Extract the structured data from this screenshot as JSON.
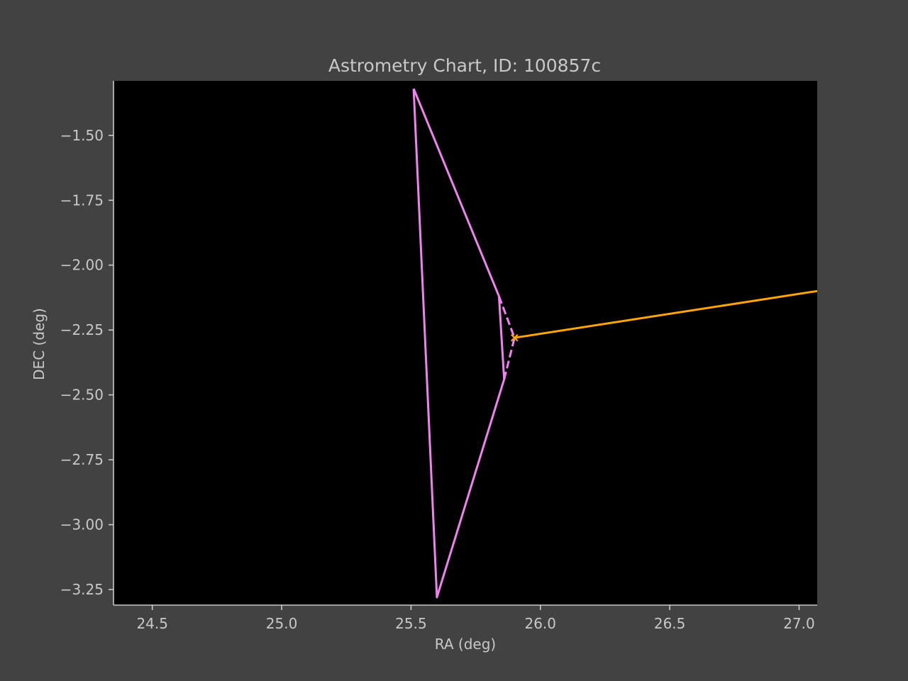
{
  "colors": {
    "figure_bg": "#424242",
    "axes_bg": "#000000",
    "axis_text": "#c8c8c8",
    "spine": "#c8c8c8",
    "outline_series": "#ee82ee",
    "track_series": "#ffa500"
  },
  "chart_data": {
    "type": "line",
    "title": "Astrometry Chart, ID: 100857c",
    "xlabel": "RA (deg)",
    "ylabel": "DEC (deg)",
    "xlim": [
      24.35,
      27.07
    ],
    "ylim": [
      -3.31,
      -1.29
    ],
    "xticks": [
      24.5,
      25.0,
      25.5,
      26.0,
      26.5,
      27.0
    ],
    "xtick_labels": [
      "24.5",
      "25.0",
      "25.5",
      "26.0",
      "26.5",
      "27.0"
    ],
    "yticks": [
      -1.5,
      -1.75,
      -2.0,
      -2.25,
      -2.5,
      -2.75,
      -3.0,
      -3.25
    ],
    "ytick_labels": [
      "−1.50",
      "−1.75",
      "−2.00",
      "−2.25",
      "−2.50",
      "−2.75",
      "−3.00",
      "−3.25"
    ],
    "grid": false,
    "series": [
      {
        "color": "violet",
        "style": "solid",
        "x": [
          25.51,
          25.84,
          25.86,
          25.6,
          25.51
        ],
        "y": [
          -1.32,
          -2.12,
          -2.44,
          -3.28,
          -1.32
        ]
      },
      {
        "color": "violet",
        "style": "dashed",
        "x": [
          25.84,
          25.9,
          25.86
        ],
        "y": [
          -2.12,
          -2.28,
          -2.44
        ]
      },
      {
        "color": "orange",
        "style": "solid",
        "x": [
          25.9,
          27.07
        ],
        "y": [
          -2.28,
          -2.1
        ]
      }
    ],
    "markers": [
      {
        "x": 25.9,
        "y": -2.28,
        "symbol": "x",
        "color": "orange"
      }
    ]
  }
}
